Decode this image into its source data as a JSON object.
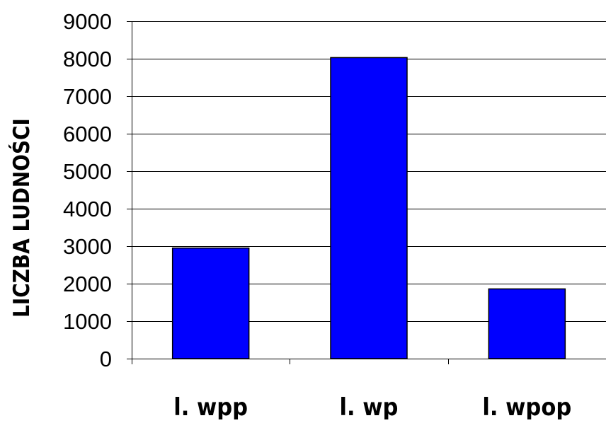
{
  "chart_data": {
    "type": "bar",
    "categories": [
      "l. wpp",
      "l. wp",
      "l. wpop"
    ],
    "values": [
      2950,
      8030,
      1860
    ],
    "title": "",
    "xlabel": "",
    "ylabel": "LICZBA LUDNOŚCI",
    "ylim": [
      0,
      9000
    ],
    "yticks": [
      0,
      1000,
      2000,
      3000,
      4000,
      5000,
      6000,
      7000,
      8000,
      9000
    ],
    "grid": true,
    "legend": "none",
    "colors": {
      "bar_fill": "#0000FF",
      "bar_stroke": "#000000",
      "grid": "#000000",
      "axis": "#000000"
    }
  }
}
